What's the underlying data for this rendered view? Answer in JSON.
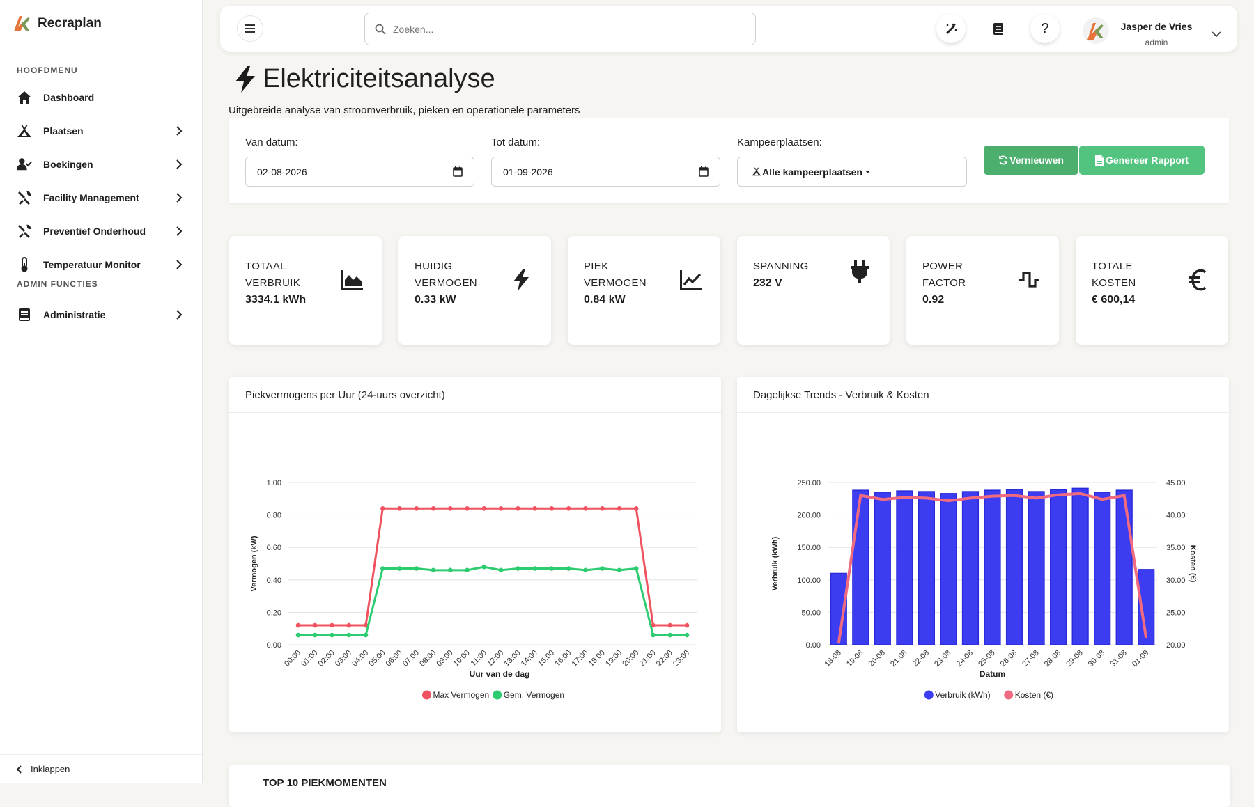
{
  "app": {
    "name": "Recraplan"
  },
  "sidebar": {
    "section_main": "HOOFDMENU",
    "items": [
      {
        "label": "Dashboard",
        "icon": "home-icon"
      },
      {
        "label": "Plaatsen",
        "icon": "tent-icon"
      },
      {
        "label": "Boekingen",
        "icon": "user-check-icon"
      },
      {
        "label": "Facility Management",
        "icon": "tools-icon"
      },
      {
        "label": "Preventief Onderhoud",
        "icon": "tools-icon"
      },
      {
        "label": "Temperatuur Monitor",
        "icon": "thermometer-icon"
      }
    ],
    "section_admin": "ADMIN FUNCTIES",
    "admin_items": [
      {
        "label": "Administratie",
        "icon": "book-icon"
      }
    ],
    "collapse_label": "Inklappen"
  },
  "topbar": {
    "search_placeholder": "Zoeken...",
    "user": {
      "name": "Jasper de Vries",
      "role": "admin"
    }
  },
  "page": {
    "title": "Elektriciteitsanalyse",
    "subtitle": "Uitgebreide analyse van stroomverbruik, pieken en operationele parameters"
  },
  "filters": {
    "from_label": "Van datum:",
    "from_value": "02-08-2026",
    "to_label": "Tot datum:",
    "to_value": "01-09-2026",
    "sites_label": "Kampeerplaatsen:",
    "sites_value": "Alle kampeerplaatsen",
    "refresh_label": "Vernieuwen",
    "report_label": "Genereer Rapport",
    "refresh_color": "#4caf6e",
    "report_color": "#52c47f"
  },
  "stats": [
    {
      "line1": "TOTAAL",
      "line2": "VERBRUIK",
      "value": "3334.1 kWh",
      "icon": "area-chart-icon"
    },
    {
      "line1": "HUIDIG",
      "line2": "VERMOGEN",
      "value": "0.33 kW",
      "icon": "bolt-icon"
    },
    {
      "line1": "PIEK",
      "line2": "VERMOGEN",
      "value": "0.84 kW",
      "icon": "line-chart-icon"
    },
    {
      "line1": "SPANNING",
      "line2": "",
      "value": "232 V",
      "icon": "plug-icon"
    },
    {
      "line1": "POWER",
      "line2": "FACTOR",
      "value": "0.92",
      "icon": "wave-square-icon"
    },
    {
      "line1": "TOTALE",
      "line2": "KOSTEN",
      "value": "€ 600,14",
      "icon": "euro-icon"
    }
  ],
  "charts": {
    "peak_title": "Piekvermogens per Uur (24-uurs overzicht)",
    "daily_title": "Dagelijkse Trends - Verbruik & Kosten"
  },
  "chart_data": [
    {
      "type": "line",
      "title": "Piekvermogens per Uur (24-uurs overzicht)",
      "xlabel": "Uur van de dag",
      "ylabel": "Vermogen (kW)",
      "ylim": [
        0,
        1
      ],
      "yticks": [
        "0.00",
        "0.20",
        "0.40",
        "0.60",
        "0.80",
        "1.00"
      ],
      "grid": true,
      "legend": "bottom",
      "categories": [
        "00:00",
        "01:00",
        "02:00",
        "03:00",
        "04:00",
        "05:00",
        "06:00",
        "07:00",
        "08:00",
        "09:00",
        "10:00",
        "11:00",
        "12:00",
        "13:00",
        "14:00",
        "15:00",
        "16:00",
        "17:00",
        "18:00",
        "19:00",
        "20:00",
        "21:00",
        "22:00",
        "23:00"
      ],
      "series": [
        {
          "name": "Max Vermogen",
          "color": "#f0525f",
          "values": [
            0.12,
            0.12,
            0.12,
            0.12,
            0.12,
            0.84,
            0.84,
            0.84,
            0.84,
            0.84,
            0.84,
            0.84,
            0.84,
            0.84,
            0.84,
            0.84,
            0.84,
            0.84,
            0.84,
            0.84,
            0.84,
            0.12,
            0.12,
            0.12
          ]
        },
        {
          "name": "Gem. Vermogen",
          "color": "#2ecc71",
          "values": [
            0.06,
            0.06,
            0.06,
            0.06,
            0.06,
            0.47,
            0.47,
            0.47,
            0.46,
            0.46,
            0.46,
            0.48,
            0.46,
            0.47,
            0.47,
            0.47,
            0.47,
            0.46,
            0.47,
            0.46,
            0.47,
            0.06,
            0.06,
            0.06
          ]
        }
      ]
    },
    {
      "type": "bar",
      "title": "Dagelijkse Trends - Verbruik & Kosten",
      "xlabel": "Datum",
      "ylabel": "Verbruik (kWh)",
      "y2label": "Kosten (€)",
      "ylim": [
        0,
        250
      ],
      "y2lim": [
        20,
        45
      ],
      "yticks": [
        "0.00",
        "50.00",
        "100.00",
        "150.00",
        "200.00",
        "250.00"
      ],
      "y2ticks": [
        "20.00",
        "25.00",
        "30.00",
        "35.00",
        "40.00",
        "45.00"
      ],
      "grid": true,
      "legend": "bottom",
      "categories": [
        "18-08",
        "19-08",
        "20-08",
        "21-08",
        "22-08",
        "23-08",
        "24-08",
        "25-08",
        "26-08",
        "27-08",
        "28-08",
        "29-08",
        "30-08",
        "31-08",
        "01-09"
      ],
      "series": [
        {
          "name": "Verbruik (kWh)",
          "type": "bar",
          "axis": "left",
          "color": "#3c3cf0",
          "values": [
            110,
            238,
            235,
            237,
            236,
            233,
            236,
            238,
            239,
            236,
            239,
            241,
            235,
            238,
            116
          ]
        },
        {
          "name": "Kosten (€)",
          "type": "line",
          "axis": "right",
          "color": "#f06b7f",
          "values": [
            20.2,
            43.0,
            42.4,
            42.7,
            42.6,
            42.2,
            42.6,
            42.9,
            43.0,
            42.6,
            43.1,
            43.3,
            42.4,
            43.0,
            21.0
          ]
        }
      ]
    }
  ],
  "top_section": {
    "title": "TOP 10 PIEKMOMENTEN"
  }
}
